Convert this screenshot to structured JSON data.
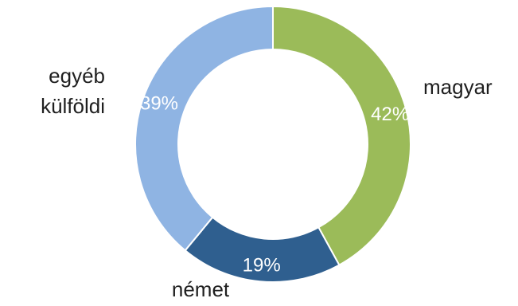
{
  "chart_data": {
    "type": "pie",
    "categories": [
      "magyar",
      "német",
      "egyéb külföldi"
    ],
    "values": [
      42,
      19,
      39
    ],
    "labels": [
      "42%",
      "19%",
      "39%"
    ],
    "colors": [
      "#9bbb59",
      "#2f5f8f",
      "#8fb4e3"
    ],
    "donut": true,
    "legend": "none"
  }
}
